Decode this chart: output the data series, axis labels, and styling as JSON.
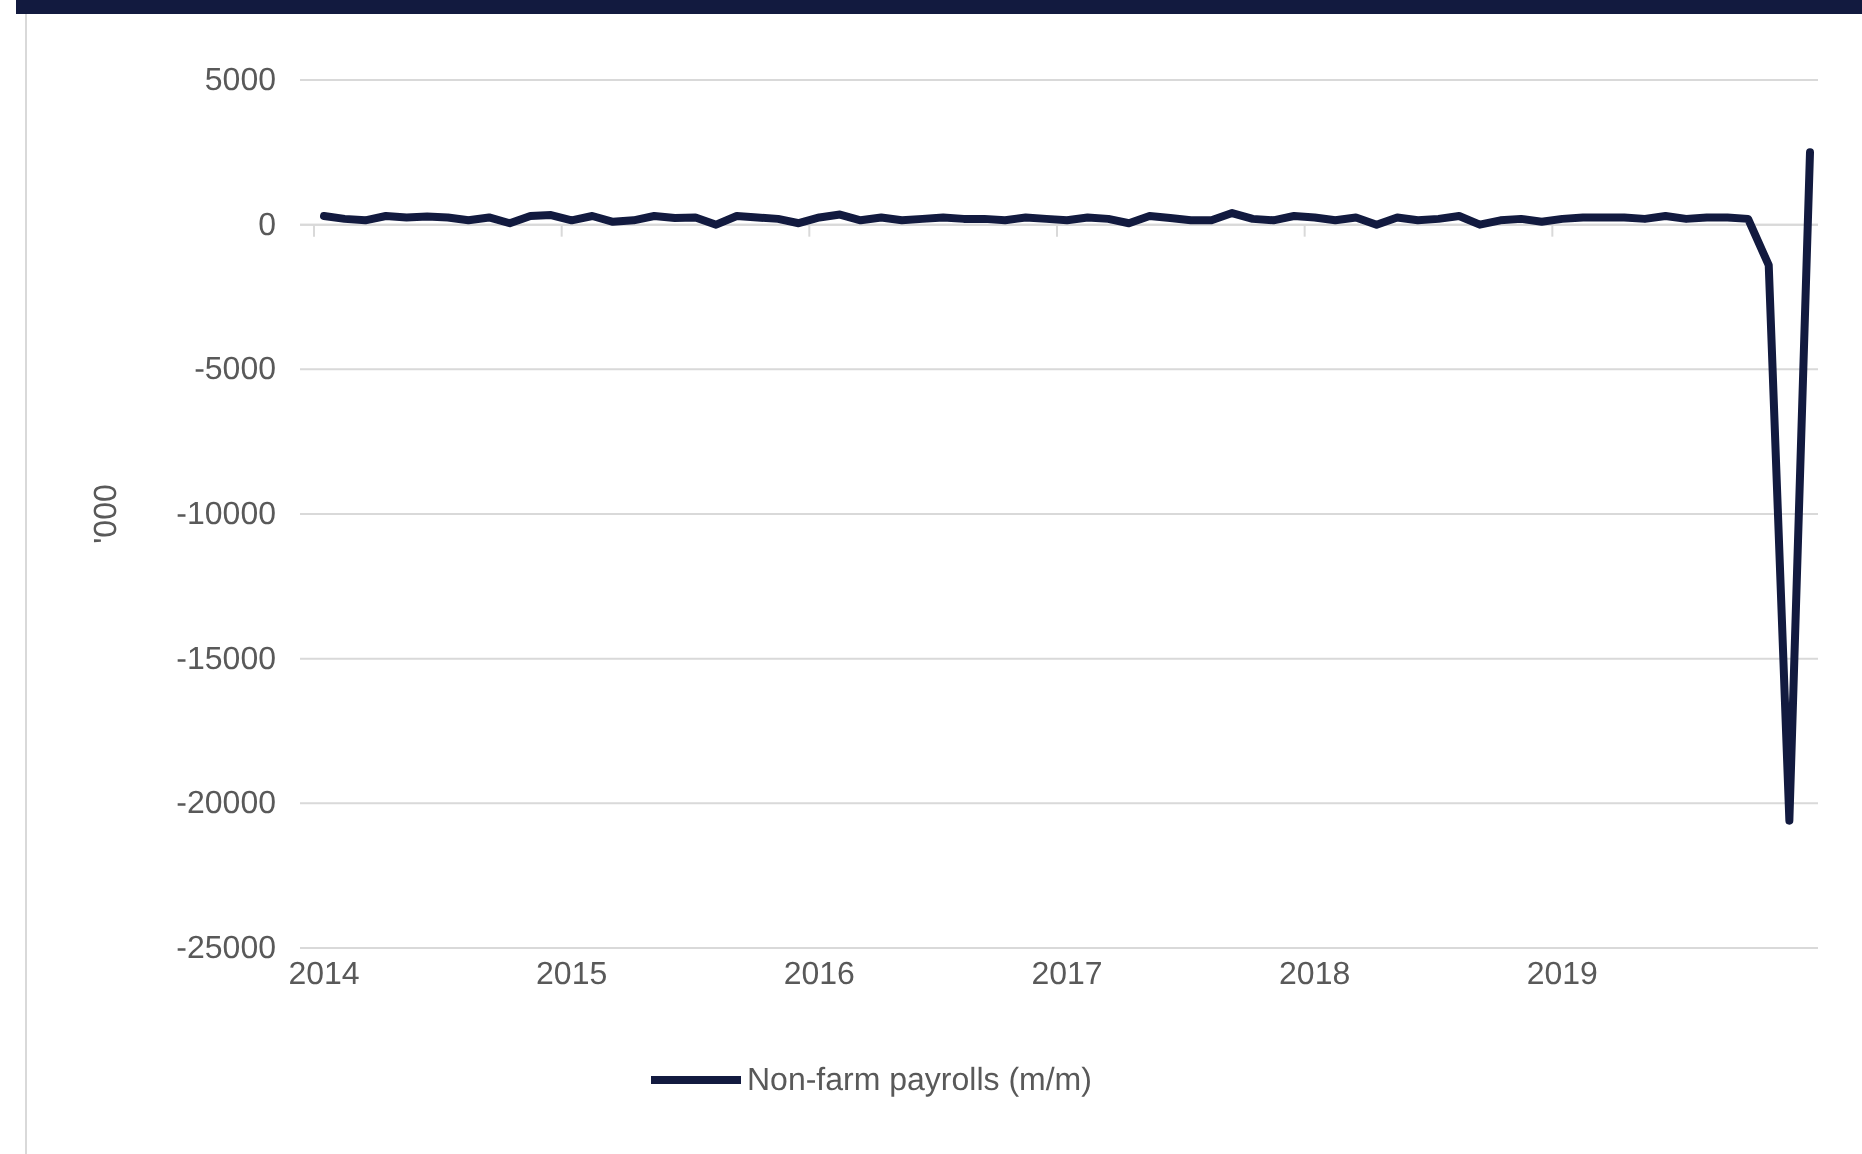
{
  "chart_data": {
    "type": "line",
    "ylabel": "'000",
    "categories": [
      "2014",
      null,
      null,
      null,
      null,
      null,
      null,
      null,
      null,
      null,
      null,
      null,
      "2015",
      null,
      null,
      null,
      null,
      null,
      null,
      null,
      null,
      null,
      null,
      null,
      "2016",
      null,
      null,
      null,
      null,
      null,
      null,
      null,
      null,
      null,
      null,
      null,
      "2017",
      null,
      null,
      null,
      null,
      null,
      null,
      null,
      null,
      null,
      null,
      null,
      "2018",
      null,
      null,
      null,
      null,
      null,
      null,
      null,
      null,
      null,
      null,
      null,
      "2019",
      null,
      null,
      null,
      null,
      null,
      null,
      null,
      null,
      null,
      null,
      null,
      null
    ],
    "series": [
      {
        "name": "Non-farm payrolls (m/m)",
        "color": "#121a3f",
        "values": [
          300,
          200,
          150,
          300,
          250,
          280,
          250,
          150,
          250,
          50,
          300,
          330,
          150,
          300,
          100,
          150,
          300,
          230,
          250,
          0,
          300,
          250,
          200,
          50,
          250,
          350,
          150,
          250,
          150,
          200,
          250,
          200,
          200,
          150,
          250,
          200,
          150,
          250,
          200,
          50,
          300,
          230,
          150,
          150,
          400,
          200,
          150,
          300,
          250,
          150,
          250,
          0,
          250,
          150,
          200,
          300,
          0,
          150,
          200,
          100,
          200,
          250,
          250,
          250,
          200,
          300,
          200,
          250,
          250,
          200,
          -1400,
          -20600,
          2500
        ]
      }
    ],
    "ylim": [
      -25000,
      5000
    ],
    "yticks": [
      -25000,
      -20000,
      -15000,
      -10000,
      -5000,
      0,
      5000
    ],
    "grid": "y",
    "legend": "bottom",
    "marker": "none",
    "line_style": "solid"
  }
}
